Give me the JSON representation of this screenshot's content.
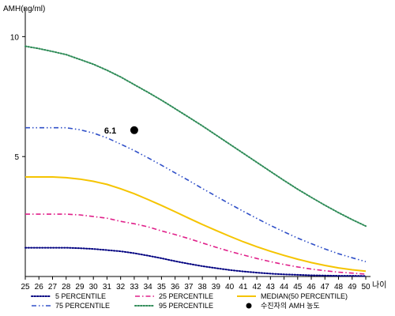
{
  "chart_data": {
    "type": "line",
    "ylabel": "AMH(ng/ml)",
    "xlabel": "나이",
    "ylim": [
      0,
      11
    ],
    "xlim": [
      25,
      50
    ],
    "x": [
      25,
      26,
      27,
      28,
      29,
      30,
      31,
      32,
      33,
      34,
      35,
      36,
      37,
      38,
      39,
      40,
      41,
      42,
      43,
      44,
      45,
      46,
      47,
      48,
      49,
      50
    ],
    "x_tick_labels": [
      "25",
      "26",
      "27",
      "28",
      "29",
      "30",
      "31",
      "32",
      "33",
      "34",
      "35",
      "36",
      "37",
      "38",
      "39",
      "40",
      "41",
      "42",
      "43",
      "44",
      "45",
      "46",
      "47",
      "48",
      "49",
      "50"
    ],
    "y_ticks": [
      5,
      10
    ],
    "y_tick_labels": [
      "5",
      "10"
    ],
    "grid": false,
    "legend_position": "bottom",
    "series": [
      {
        "name": "5 PERCENTILE",
        "color": "#000080",
        "style": "dotted",
        "values": [
          1.2,
          1.2,
          1.2,
          1.2,
          1.18,
          1.15,
          1.1,
          1.05,
          0.97,
          0.87,
          0.76,
          0.64,
          0.53,
          0.43,
          0.35,
          0.27,
          0.21,
          0.16,
          0.12,
          0.09,
          0.07,
          0.05,
          0.04,
          0.03,
          0.03,
          0.02
        ]
      },
      {
        "name": "25 PERCENTILE",
        "color": "#e0208a",
        "style": "dash-dot",
        "values": [
          2.6,
          2.6,
          2.6,
          2.6,
          2.57,
          2.5,
          2.43,
          2.3,
          2.2,
          2.07,
          1.9,
          1.75,
          1.58,
          1.4,
          1.22,
          1.05,
          0.9,
          0.75,
          0.62,
          0.5,
          0.4,
          0.31,
          0.24,
          0.18,
          0.14,
          0.1
        ]
      },
      {
        "name": "MEDIAN(50 PERCENTILE)",
        "color": "#f5c400",
        "style": "solid",
        "values": [
          4.15,
          4.15,
          4.15,
          4.12,
          4.06,
          3.97,
          3.84,
          3.66,
          3.45,
          3.21,
          2.96,
          2.7,
          2.43,
          2.17,
          1.92,
          1.68,
          1.45,
          1.24,
          1.05,
          0.88,
          0.72,
          0.58,
          0.46,
          0.36,
          0.28,
          0.22
        ]
      },
      {
        "name": "75 PERCENTILE",
        "color": "#3050c8",
        "style": "dash-dot-dot",
        "values": [
          6.2,
          6.2,
          6.2,
          6.2,
          6.12,
          5.98,
          5.78,
          5.52,
          5.25,
          4.95,
          4.64,
          4.32,
          4.0,
          3.67,
          3.35,
          3.03,
          2.72,
          2.42,
          2.13,
          1.86,
          1.6,
          1.37,
          1.15,
          0.95,
          0.78,
          0.62
        ]
      },
      {
        "name": "95 PERCENTILE",
        "color": "#2e8b57",
        "style": "dotted",
        "values": [
          9.6,
          9.5,
          9.38,
          9.25,
          9.05,
          8.85,
          8.6,
          8.32,
          8.0,
          7.68,
          7.35,
          7.0,
          6.64,
          6.28,
          5.9,
          5.52,
          5.14,
          4.76,
          4.38,
          4.0,
          3.64,
          3.3,
          2.97,
          2.66,
          2.37,
          2.1
        ]
      }
    ],
    "points": [
      {
        "name": "수진자의 AMH 농도",
        "x": 33,
        "y": 6.1,
        "label": "6.1",
        "color": "#000000"
      }
    ],
    "legend": [
      {
        "label": "5 PERCENTILE",
        "color": "#000080",
        "style": "dotted"
      },
      {
        "label": "25 PERCENTILE",
        "color": "#e0208a",
        "style": "dash-dot"
      },
      {
        "label": "MEDIAN(50 PERCENTILE)",
        "color": "#f5c400",
        "style": "solid"
      },
      {
        "label": "75 PERCENTILE",
        "color": "#3050c8",
        "style": "dash-dot-dot"
      },
      {
        "label": "95 PERCENTILE",
        "color": "#2e8b57",
        "style": "dotted"
      },
      {
        "label": "수진자의 AMH 농도",
        "color": "#000000",
        "style": "marker"
      }
    ]
  }
}
